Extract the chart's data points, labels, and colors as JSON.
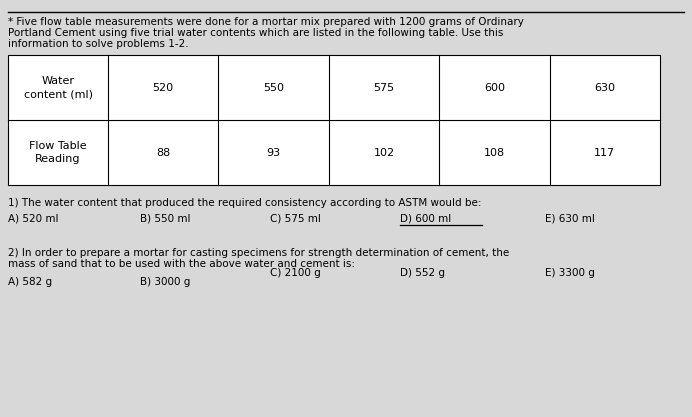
{
  "bg_color": "#d8d8d8",
  "intro_text_line1": "* Five flow table measurements were done for a mortar mix prepared with 1200 grams of Ordinary",
  "intro_text_line2": "Portland Cement using five trial water contents which are listed in the following table. Use this",
  "intro_text_line3": "information to solve problems 1-2.",
  "table_row1_label": "Water\ncontent (ml)",
  "table_row2_label": "Flow Table\nReading",
  "col_values": [
    "520",
    "550",
    "575",
    "600",
    "630"
  ],
  "row2_values": [
    "88",
    "93",
    "102",
    "108",
    "117"
  ],
  "q1_text": "1) The water content that produced the required consistency according to ASTM would be:",
  "q1_options": [
    "A) 520 ml",
    "B) 550 ml",
    "C) 575 ml",
    "D) 600 ml",
    "E) 630 ml"
  ],
  "q1_underline_idx": 3,
  "q2_text_line1": "2) In order to prepare a mortar for casting specimens for strength determination of cement, the",
  "q2_text_line2": "mass of sand that to be used with the above water and cement is:",
  "q2_options_row1": [
    "A) 582 g",
    "B) 3000 g"
  ],
  "q2_options_row2": [
    "C) 2100 g",
    "D) 552 g",
    "E) 3300 g"
  ],
  "font_size": 7.5,
  "font_size_table": 8.0
}
